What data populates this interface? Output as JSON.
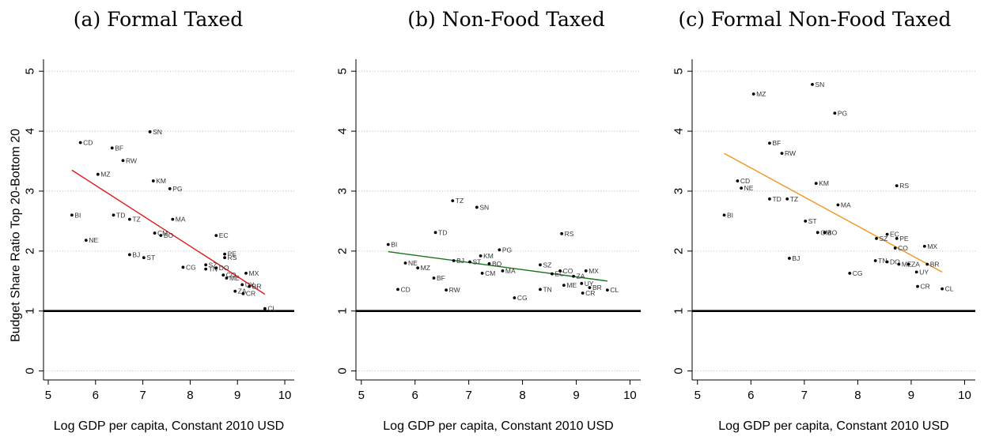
{
  "chart_data": [
    {
      "type": "scatter",
      "title": "(a) Formal Taxed",
      "xlabel": "Log GDP per capita, Constant 2010 USD",
      "ylabel": "Budget Share Ratio Top 20-Bottom 20",
      "xlim": [
        4.9,
        10.2
      ],
      "ylim": [
        -0.15,
        5.2
      ],
      "xticks": [
        5,
        6,
        7,
        8,
        9,
        10
      ],
      "yticks": [
        0,
        1,
        2,
        3,
        4,
        5
      ],
      "grid": true,
      "reference_line": 1,
      "fit": {
        "color": "#e0191b",
        "x": [
          5.5,
          9.58
        ],
        "y": [
          3.35,
          1.28
        ]
      },
      "points": [
        {
          "label": "SN",
          "x": 7.15,
          "y": 3.99
        },
        {
          "label": "CD",
          "x": 5.68,
          "y": 3.81
        },
        {
          "label": "BF",
          "x": 6.35,
          "y": 3.72
        },
        {
          "label": "RW",
          "x": 6.58,
          "y": 3.51
        },
        {
          "label": "MZ",
          "x": 6.05,
          "y": 3.28
        },
        {
          "label": "KM",
          "x": 7.22,
          "y": 3.17
        },
        {
          "label": "PG",
          "x": 7.57,
          "y": 3.04
        },
        {
          "label": "BI",
          "x": 5.5,
          "y": 2.6
        },
        {
          "label": "TD",
          "x": 6.38,
          "y": 2.6
        },
        {
          "label": "TZ",
          "x": 6.72,
          "y": 2.53
        },
        {
          "label": "MA",
          "x": 7.63,
          "y": 2.53
        },
        {
          "label": "CM",
          "x": 7.25,
          "y": 2.3
        },
        {
          "label": "BO",
          "x": 7.38,
          "y": 2.26
        },
        {
          "label": "EC",
          "x": 8.55,
          "y": 2.26
        },
        {
          "label": "NE",
          "x": 5.8,
          "y": 2.18
        },
        {
          "label": "BJ",
          "x": 6.72,
          "y": 1.94
        },
        {
          "label": "ST",
          "x": 7.02,
          "y": 1.89
        },
        {
          "label": "PE",
          "x": 8.73,
          "y": 1.95
        },
        {
          "label": "RS",
          "x": 8.73,
          "y": 1.89
        },
        {
          "label": "CG",
          "x": 7.85,
          "y": 1.73
        },
        {
          "label": "SZ",
          "x": 8.33,
          "y": 1.77
        },
        {
          "label": "TN",
          "x": 8.33,
          "y": 1.7
        },
        {
          "label": "DO",
          "x": 8.55,
          "y": 1.72
        },
        {
          "label": "MX",
          "x": 9.18,
          "y": 1.63
        },
        {
          "label": "CO",
          "x": 8.7,
          "y": 1.6
        },
        {
          "label": "ME",
          "x": 8.77,
          "y": 1.55
        },
        {
          "label": "UY",
          "x": 9.1,
          "y": 1.44
        },
        {
          "label": "BR",
          "x": 9.25,
          "y": 1.41
        },
        {
          "label": "ZA",
          "x": 8.95,
          "y": 1.33
        },
        {
          "label": "CR",
          "x": 9.12,
          "y": 1.29
        },
        {
          "label": "CL",
          "x": 9.58,
          "y": 1.04
        }
      ]
    },
    {
      "type": "scatter",
      "title": "(b) Non-Food Taxed",
      "xlabel": "Log GDP per capita, Constant 2010 USD",
      "ylabel": "",
      "xlim": [
        4.9,
        10.2
      ],
      "ylim": [
        -0.15,
        5.2
      ],
      "xticks": [
        5,
        6,
        7,
        8,
        9,
        10
      ],
      "yticks": [
        0,
        1,
        2,
        3,
        4,
        5
      ],
      "grid": true,
      "reference_line": 1,
      "fit": {
        "color": "#17741b",
        "x": [
          5.5,
          9.58
        ],
        "y": [
          1.99,
          1.5
        ]
      },
      "points": [
        {
          "label": "TZ",
          "x": 6.7,
          "y": 2.84
        },
        {
          "label": "SN",
          "x": 7.15,
          "y": 2.73
        },
        {
          "label": "TD",
          "x": 6.38,
          "y": 2.31
        },
        {
          "label": "RS",
          "x": 8.73,
          "y": 2.29
        },
        {
          "label": "BI",
          "x": 5.5,
          "y": 2.11
        },
        {
          "label": "PG",
          "x": 7.57,
          "y": 2.02
        },
        {
          "label": "KM",
          "x": 7.22,
          "y": 1.92
        },
        {
          "label": "BJ",
          "x": 6.72,
          "y": 1.84
        },
        {
          "label": "ST",
          "x": 7.02,
          "y": 1.82
        },
        {
          "label": "NE",
          "x": 5.82,
          "y": 1.8
        },
        {
          "label": "BO",
          "x": 7.38,
          "y": 1.79
        },
        {
          "label": "SZ",
          "x": 8.33,
          "y": 1.77
        },
        {
          "label": "MZ",
          "x": 6.05,
          "y": 1.72
        },
        {
          "label": "MA",
          "x": 7.63,
          "y": 1.67
        },
        {
          "label": "CO",
          "x": 8.7,
          "y": 1.67
        },
        {
          "label": "MX",
          "x": 9.18,
          "y": 1.67
        },
        {
          "label": "CM",
          "x": 7.25,
          "y": 1.63
        },
        {
          "label": "EC",
          "x": 8.55,
          "y": 1.62
        },
        {
          "label": "ZA",
          "x": 8.95,
          "y": 1.58
        },
        {
          "label": "BF",
          "x": 6.35,
          "y": 1.55
        },
        {
          "label": "UY",
          "x": 9.1,
          "y": 1.46
        },
        {
          "label": "ME",
          "x": 8.77,
          "y": 1.43
        },
        {
          "label": "BR",
          "x": 9.25,
          "y": 1.39
        },
        {
          "label": "CD",
          "x": 5.68,
          "y": 1.36
        },
        {
          "label": "RW",
          "x": 6.58,
          "y": 1.35
        },
        {
          "label": "TN",
          "x": 8.33,
          "y": 1.36
        },
        {
          "label": "CL",
          "x": 9.58,
          "y": 1.35
        },
        {
          "label": "CR",
          "x": 9.12,
          "y": 1.3
        },
        {
          "label": "CG",
          "x": 7.85,
          "y": 1.22
        }
      ]
    },
    {
      "type": "scatter",
      "title": "(c) Formal Non-Food Taxed",
      "xlabel": "Log GDP per capita, Constant 2010 USD",
      "ylabel": "",
      "xlim": [
        4.9,
        10.2
      ],
      "ylim": [
        -0.15,
        5.2
      ],
      "xticks": [
        5,
        6,
        7,
        8,
        9,
        10
      ],
      "yticks": [
        0,
        1,
        2,
        3,
        4,
        5
      ],
      "grid": true,
      "reference_line": 1,
      "fit": {
        "color": "#f29522",
        "x": [
          5.5,
          9.58
        ],
        "y": [
          3.63,
          1.65
        ]
      },
      "points": [
        {
          "label": "SN",
          "x": 7.15,
          "y": 4.78
        },
        {
          "label": "MZ",
          "x": 6.05,
          "y": 4.62
        },
        {
          "label": "PG",
          "x": 7.57,
          "y": 4.3
        },
        {
          "label": "BF",
          "x": 6.35,
          "y": 3.8
        },
        {
          "label": "RW",
          "x": 6.58,
          "y": 3.63
        },
        {
          "label": "CD",
          "x": 5.75,
          "y": 3.17
        },
        {
          "label": "KM",
          "x": 7.22,
          "y": 3.13
        },
        {
          "label": "RS",
          "x": 8.73,
          "y": 3.09
        },
        {
          "label": "NE",
          "x": 5.82,
          "y": 3.05
        },
        {
          "label": "TD",
          "x": 6.35,
          "y": 2.87
        },
        {
          "label": "TZ",
          "x": 6.68,
          "y": 2.87
        },
        {
          "label": "MA",
          "x": 7.63,
          "y": 2.77
        },
        {
          "label": "BI",
          "x": 5.5,
          "y": 2.6
        },
        {
          "label": "ST",
          "x": 7.02,
          "y": 2.5
        },
        {
          "label": "CM",
          "x": 7.25,
          "y": 2.31
        },
        {
          "label": "BO",
          "x": 7.38,
          "y": 2.31
        },
        {
          "label": "EC",
          "x": 8.55,
          "y": 2.28
        },
        {
          "label": "SZ",
          "x": 8.35,
          "y": 2.21
        },
        {
          "label": "PE",
          "x": 8.73,
          "y": 2.21
        },
        {
          "label": "MX",
          "x": 9.25,
          "y": 2.08
        },
        {
          "label": "CO",
          "x": 8.7,
          "y": 2.05
        },
        {
          "label": "BJ",
          "x": 6.72,
          "y": 1.88
        },
        {
          "label": "TN",
          "x": 8.33,
          "y": 1.84
        },
        {
          "label": "DO",
          "x": 8.55,
          "y": 1.82
        },
        {
          "label": "ME",
          "x": 8.77,
          "y": 1.78
        },
        {
          "label": "ZA",
          "x": 8.95,
          "y": 1.78
        },
        {
          "label": "BR",
          "x": 9.3,
          "y": 1.78
        },
        {
          "label": "UY",
          "x": 9.1,
          "y": 1.65
        },
        {
          "label": "CG",
          "x": 7.85,
          "y": 1.63
        },
        {
          "label": "CR",
          "x": 9.12,
          "y": 1.41
        },
        {
          "label": "CL",
          "x": 9.58,
          "y": 1.37
        }
      ]
    }
  ]
}
